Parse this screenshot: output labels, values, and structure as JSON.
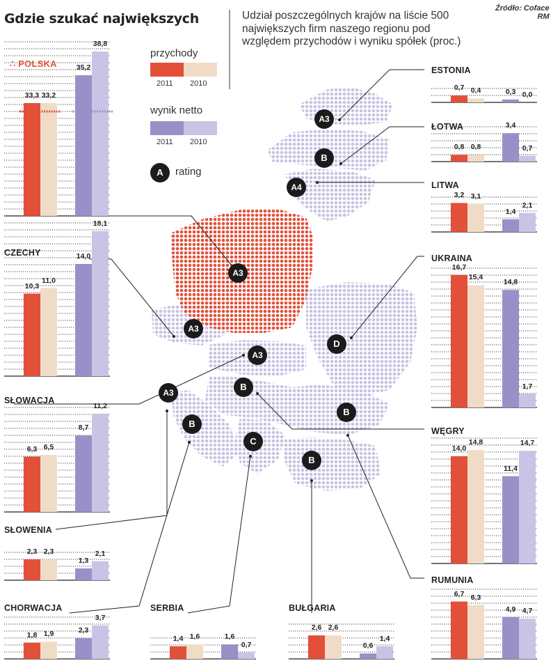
{
  "title": "Gdzie szukać największych",
  "headnote": "Udział poszczególnych krajów na liście 500 największych firm naszego regionu pod względem przychodów i wyniku spółek (proc.)",
  "source": {
    "line1": "Źródło: Coface",
    "line2": "RM"
  },
  "legend": {
    "revenue_label": "przychody",
    "net_label": "wynik netto",
    "year_2011": "2011",
    "year_2010": "2010",
    "rating_badge": "A",
    "rating_label": "rating"
  },
  "colors": {
    "rev2011": "#e3503a",
    "rev2010": "#f0dcc6",
    "net2011": "#9b8fc7",
    "net2010": "#c9c4e6",
    "map_other": "#c8c3e3",
    "map_poland": "#e3503a",
    "badge": "#1b1b1b"
  },
  "chart_data": {
    "type": "bar",
    "categories": [
      "przychody 2011",
      "przychody 2010",
      "wynik netto 2011",
      "wynik netto 2010"
    ],
    "unit": "proc.",
    "countries": [
      {
        "name": "POLSKA",
        "rating": "A3",
        "values": [
          33.3,
          33.2,
          35.2,
          38.8
        ],
        "labels": [
          "33,3",
          "33,2",
          "35,2",
          "38,8"
        ]
      },
      {
        "name": "CZECHY",
        "rating": "A3",
        "values": [
          10.3,
          11.0,
          14.0,
          18.1
        ],
        "labels": [
          "10,3",
          "11,0",
          "14,0",
          "18,1"
        ]
      },
      {
        "name": "SŁOWACJA",
        "rating": "A3",
        "values": [
          6.3,
          6.5,
          8.7,
          11.2
        ],
        "labels": [
          "6,3",
          "6,5",
          "8,7",
          "11,2"
        ]
      },
      {
        "name": "SŁOWENIA",
        "rating": "A3",
        "values": [
          2.3,
          2.3,
          1.3,
          2.1
        ],
        "labels": [
          "2,3",
          "2,3",
          "1,3",
          "2,1"
        ]
      },
      {
        "name": "CHORWACJA",
        "rating": "B",
        "values": [
          1.8,
          1.9,
          2.3,
          3.7
        ],
        "labels": [
          "1,8",
          "1,9",
          "2,3",
          "3,7"
        ]
      },
      {
        "name": "SERBIA",
        "rating": "C",
        "values": [
          1.4,
          1.6,
          1.6,
          0.7
        ],
        "labels": [
          "1,4",
          "1,6",
          "1,6",
          "0,7"
        ]
      },
      {
        "name": "BUŁGARIA",
        "rating": "B",
        "values": [
          2.6,
          2.6,
          0.6,
          1.4
        ],
        "labels": [
          "2,6",
          "2,6",
          "0,6",
          "1,4"
        ]
      },
      {
        "name": "RUMUNIA",
        "rating": "B",
        "values": [
          6.7,
          6.3,
          4.9,
          4.7
        ],
        "labels": [
          "6,7",
          "6,3",
          "4,9",
          "4,7"
        ]
      },
      {
        "name": "WĘGRY",
        "rating": "B",
        "values": [
          14.0,
          14.8,
          11.4,
          14.7
        ],
        "labels": [
          "14,0",
          "14,8",
          "11,4",
          "14,7"
        ]
      },
      {
        "name": "UKRAINA",
        "rating": "D",
        "values": [
          16.7,
          15.4,
          14.8,
          1.7
        ],
        "labels": [
          "16,7",
          "15,4",
          "14,8",
          "1,7"
        ]
      },
      {
        "name": "LITWA",
        "rating": "A4",
        "values": [
          3.2,
          3.1,
          1.4,
          2.1
        ],
        "labels": [
          "3,2",
          "3,1",
          "1,4",
          "2,1"
        ]
      },
      {
        "name": "ŁOTWA",
        "rating": "B",
        "values": [
          0.8,
          0.8,
          3.4,
          0.7
        ],
        "labels": [
          "0,8",
          "0,8",
          "3,4",
          "0,7"
        ]
      },
      {
        "name": "ESTONIA",
        "rating": "A3",
        "values": [
          0.7,
          0.4,
          0.3,
          0.0
        ],
        "labels": [
          "0,7",
          "0,4",
          "0,3",
          "0,0"
        ]
      }
    ]
  }
}
